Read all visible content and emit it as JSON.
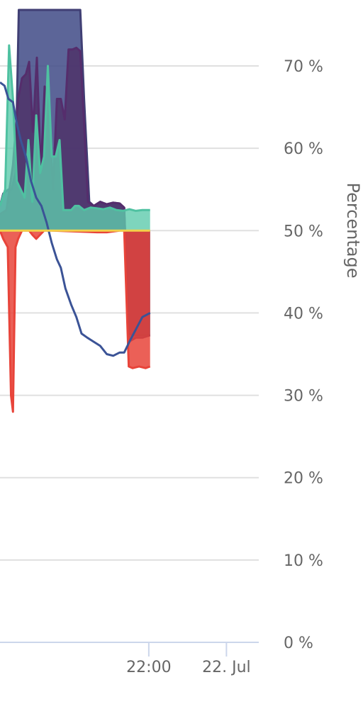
{
  "chart_data": {
    "type": "area",
    "ylabel": "Percentage",
    "baseline": 50,
    "ylim": [
      0,
      75
    ],
    "yticks": [
      {
        "value": 0,
        "label": "0 %"
      },
      {
        "value": 10,
        "label": "10 %"
      },
      {
        "value": 20,
        "label": "20 %"
      },
      {
        "value": 30,
        "label": "30 %"
      },
      {
        "value": 40,
        "label": "40 %"
      },
      {
        "value": 50,
        "label": "50 %"
      },
      {
        "value": 60,
        "label": "60 %"
      },
      {
        "value": 70,
        "label": "70 %"
      }
    ],
    "xlim_minutes": [
      -350,
      50
    ],
    "xticks": [
      {
        "minute": -120,
        "label": "22:00"
      },
      {
        "minute": 0,
        "label": "22. Jul"
      }
    ],
    "grid": true,
    "series": [
      {
        "kind": "area",
        "color": "#403f74",
        "fill": "#3f4a86",
        "opacity": 0.85,
        "points": [
          [
            -350,
            53
          ],
          [
            -345,
            54.5
          ],
          [
            -337,
            55
          ],
          [
            -332,
            55
          ],
          [
            -326,
            57
          ],
          [
            -321,
            76.8
          ],
          [
            -315,
            76.8
          ],
          [
            -305,
            76.8
          ],
          [
            -295,
            76.8
          ],
          [
            -285,
            76.8
          ],
          [
            -275,
            76.8
          ],
          [
            -265,
            76.8
          ],
          [
            -255,
            76.8
          ],
          [
            -245,
            76.8
          ],
          [
            -235,
            76.8
          ],
          [
            -226,
            76.8
          ],
          [
            -220,
            66
          ],
          [
            -212,
            53.5
          ],
          [
            -205,
            53
          ],
          [
            -195,
            53.5
          ],
          [
            -185,
            53.2
          ],
          [
            -175,
            53.4
          ],
          [
            -165,
            53.3
          ],
          [
            -158,
            52.8
          ],
          [
            -151,
            37.5
          ],
          [
            -145,
            37.3
          ],
          [
            -135,
            37.3
          ],
          [
            -125,
            37.3
          ],
          [
            -118,
            37.3
          ]
        ]
      },
      {
        "kind": "area",
        "color": "#552d6c",
        "fill": "#4e2f66",
        "opacity": 0.8,
        "points": [
          [
            -350,
            52
          ],
          [
            -340,
            52.5
          ],
          [
            -330,
            58
          ],
          [
            -322,
            66
          ],
          [
            -316,
            68.5
          ],
          [
            -310,
            69
          ],
          [
            -305,
            70.5
          ],
          [
            -299,
            62
          ],
          [
            -293,
            71
          ],
          [
            -287,
            57
          ],
          [
            -281,
            67.5
          ],
          [
            -275,
            65
          ],
          [
            -268,
            55
          ],
          [
            -262,
            66
          ],
          [
            -256,
            66
          ],
          [
            -250,
            63.5
          ],
          [
            -244,
            72
          ],
          [
            -238,
            72
          ],
          [
            -232,
            72.2
          ],
          [
            -226,
            71.8
          ],
          [
            -220,
            63
          ],
          [
            -214,
            53.5
          ],
          [
            -205,
            53
          ],
          [
            -195,
            53.5
          ],
          [
            -185,
            53.2
          ],
          [
            -175,
            53.4
          ],
          [
            -165,
            53.3
          ],
          [
            -158,
            52.8
          ],
          [
            -151,
            36.5
          ],
          [
            -140,
            37
          ],
          [
            -130,
            37
          ],
          [
            -118,
            37.3
          ]
        ]
      },
      {
        "kind": "area",
        "color": "#e8443a",
        "fill": "#e8443a",
        "opacity": 0.85,
        "points": [
          [
            -350,
            50
          ],
          [
            -345,
            49
          ],
          [
            -338,
            48
          ],
          [
            -333,
            30
          ],
          [
            -330,
            28
          ],
          [
            -326,
            48
          ],
          [
            -322,
            49
          ],
          [
            -316,
            50
          ],
          [
            -305,
            50
          ],
          [
            -300,
            49.5
          ],
          [
            -294,
            49
          ],
          [
            -288,
            49.5
          ],
          [
            -282,
            50
          ],
          [
            -270,
            50
          ],
          [
            -200,
            49.8
          ],
          [
            -185,
            49.8
          ],
          [
            -165,
            50
          ],
          [
            -158,
            50
          ],
          [
            -151,
            33.5
          ],
          [
            -145,
            33.3
          ],
          [
            -135,
            33.5
          ],
          [
            -125,
            33.3
          ],
          [
            -118,
            33.5
          ]
        ]
      },
      {
        "kind": "area",
        "color": "#4fc1a1",
        "fill": "#5ecaac",
        "opacity": 0.8,
        "points": [
          [
            -350,
            53
          ],
          [
            -342,
            55
          ],
          [
            -336,
            72.5
          ],
          [
            -330,
            66
          ],
          [
            -324,
            56
          ],
          [
            -318,
            55
          ],
          [
            -312,
            54
          ],
          [
            -306,
            61
          ],
          [
            -300,
            53.5
          ],
          [
            -294,
            64
          ],
          [
            -288,
            57
          ],
          [
            -282,
            59
          ],
          [
            -276,
            70
          ],
          [
            -270,
            59
          ],
          [
            -264,
            59
          ],
          [
            -258,
            61
          ],
          [
            -252,
            52.5
          ],
          [
            -246,
            52.5
          ],
          [
            -240,
            52.5
          ],
          [
            -234,
            53
          ],
          [
            -228,
            53
          ],
          [
            -220,
            52.5
          ],
          [
            -210,
            52.8
          ],
          [
            -200,
            52.7
          ],
          [
            -190,
            52.6
          ],
          [
            -180,
            52.8
          ],
          [
            -170,
            52.5
          ],
          [
            -160,
            52.4
          ],
          [
            -150,
            52.6
          ],
          [
            -140,
            52.4
          ],
          [
            -130,
            52.5
          ],
          [
            -118,
            52.5
          ]
        ]
      },
      {
        "kind": "line",
        "color": "#3b5396",
        "points": [
          [
            -350,
            68
          ],
          [
            -343,
            67.6
          ],
          [
            -337,
            66
          ],
          [
            -330,
            65.6
          ],
          [
            -324,
            63
          ],
          [
            -318,
            61
          ],
          [
            -310,
            59
          ],
          [
            -302,
            56
          ],
          [
            -294,
            54
          ],
          [
            -286,
            53
          ],
          [
            -278,
            51
          ],
          [
            -270,
            48.5
          ],
          [
            -262,
            46.5
          ],
          [
            -256,
            45.5
          ],
          [
            -249,
            43
          ],
          [
            -240,
            41
          ],
          [
            -232,
            39.5
          ],
          [
            -224,
            37.5
          ],
          [
            -215,
            37
          ],
          [
            -205,
            36.5
          ],
          [
            -195,
            36
          ],
          [
            -185,
            35
          ],
          [
            -175,
            34.8
          ],
          [
            -165,
            35.2
          ],
          [
            -158,
            35.2
          ],
          [
            -150,
            36.5
          ],
          [
            -140,
            38
          ],
          [
            -130,
            39.5
          ],
          [
            -118,
            40
          ]
        ]
      },
      {
        "kind": "line",
        "color": "#f2d24a",
        "points": [
          [
            -350,
            50
          ],
          [
            -118,
            50
          ]
        ]
      }
    ]
  }
}
